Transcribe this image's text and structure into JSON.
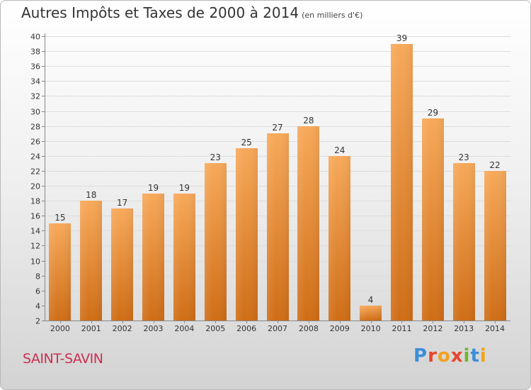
{
  "header": {
    "title": "Autres Impôts et Taxes de 2000 à 2014",
    "unit": "(en milliers d'€)"
  },
  "footer": {
    "town": "SAINT-SAVIN",
    "logo": "Proxiti"
  },
  "colors": {
    "bar_light": "#f7a95a",
    "bar_dark": "#cf6d16",
    "grid": "#dddddd",
    "axis": "#888888",
    "town": "#cc2f52"
  },
  "chart_data": {
    "type": "bar",
    "title": "Autres Impôts et Taxes de 2000 à 2014",
    "subtitle": "(en milliers d'€)",
    "xlabel": "",
    "ylabel": "",
    "categories": [
      "2000",
      "2001",
      "2002",
      "2003",
      "2004",
      "2005",
      "2006",
      "2007",
      "2008",
      "2009",
      "2010",
      "2011",
      "2012",
      "2013",
      "2014"
    ],
    "values": [
      15,
      18,
      17,
      19,
      19,
      23,
      25,
      27,
      28,
      24,
      4,
      39,
      29,
      23,
      22
    ],
    "ylim": [
      2,
      40
    ],
    "yticks": [
      2,
      4,
      6,
      8,
      10,
      12,
      14,
      16,
      18,
      20,
      22,
      24,
      26,
      28,
      30,
      32,
      34,
      36,
      38,
      40
    ],
    "grid": true,
    "legend": "none"
  }
}
